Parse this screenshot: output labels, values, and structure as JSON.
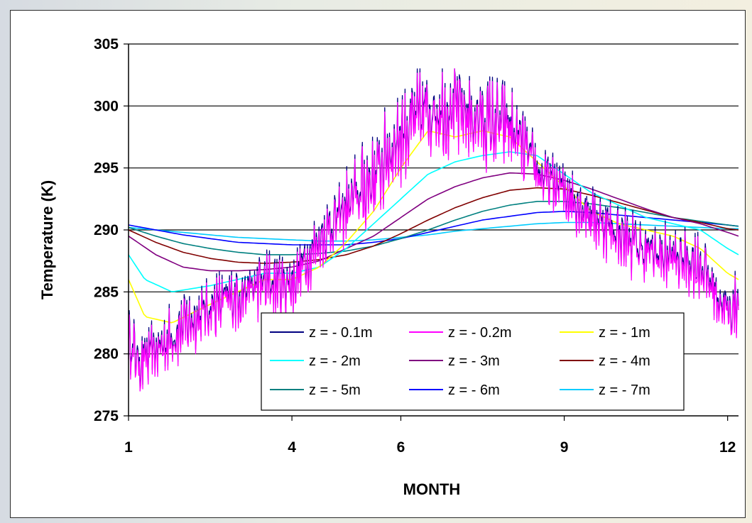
{
  "chart_data": {
    "type": "line",
    "title": "",
    "xlabel": "MONTH",
    "ylabel": "Temperature (K)",
    "xlim": [
      1,
      12.2
    ],
    "ylim": [
      275,
      305
    ],
    "x_ticks": [
      1,
      4,
      6,
      9,
      12
    ],
    "x_tick_labels": [
      "1",
      "4",
      "6",
      "9",
      "12"
    ],
    "y_ticks": [
      275,
      280,
      285,
      290,
      295,
      300,
      305
    ],
    "y_tick_labels": [
      "275",
      "280",
      "285",
      "290",
      "295",
      "300",
      "305"
    ],
    "grid": "horizontal",
    "legend_position": "bottom-center",
    "series": [
      {
        "name": "z = - 0.1m",
        "color": "#000080",
        "noise": true,
        "x": [
          1,
          1.2,
          1.5,
          2,
          2.5,
          3,
          3.5,
          4,
          4.5,
          5,
          5.5,
          6,
          6.5,
          7,
          7.5,
          8,
          8.3,
          8.6,
          9,
          9.5,
          10,
          10.5,
          11,
          11.5,
          12,
          12.2
        ],
        "y": [
          281,
          279,
          280,
          282,
          283.5,
          284.5,
          285.5,
          285.5,
          289,
          291.5,
          294,
          297.5,
          299.5,
          299.5,
          298.5,
          298,
          296,
          294,
          293,
          291,
          289.5,
          288,
          287.5,
          287,
          283,
          284
        ]
      },
      {
        "name": "z = - 0.2m",
        "color": "#ff00ff",
        "noise": true,
        "x": [
          1,
          1.2,
          1.5,
          2,
          2.5,
          3,
          3.5,
          4,
          4.5,
          5,
          5.5,
          6,
          6.5,
          7,
          7.5,
          8,
          8.3,
          8.6,
          9,
          9.5,
          10,
          10.5,
          11,
          11.5,
          12,
          12.2
        ],
        "y": [
          281,
          279,
          280,
          282,
          283.5,
          284.5,
          285.5,
          285.5,
          289,
          291.5,
          294,
          297.5,
          299.5,
          299.5,
          298.5,
          298,
          296,
          294,
          293,
          291,
          289.5,
          288,
          287.5,
          287,
          283,
          284
        ]
      },
      {
        "name": "z = - 1m",
        "color": "#ffff00",
        "x": [
          1,
          1.3,
          1.8,
          2.5,
          3,
          3.5,
          4,
          4.5,
          5,
          5.5,
          6,
          6.5,
          7,
          7.5,
          8,
          8.5,
          9,
          9.5,
          10,
          10.5,
          11,
          11.5,
          12,
          12.2
        ],
        "y": [
          286,
          283,
          282.5,
          284,
          285,
          286,
          286,
          287,
          289,
          291.5,
          295,
          298,
          297.5,
          298,
          297.5,
          295.5,
          293.5,
          291.5,
          290.5,
          290,
          289.5,
          288.5,
          286.5,
          286
        ]
      },
      {
        "name": "z = - 2m",
        "color": "#00ffff",
        "x": [
          1,
          1.3,
          1.8,
          2.5,
          3,
          3.5,
          4,
          4.5,
          5,
          5.5,
          6,
          6.5,
          7,
          7.5,
          8,
          8.5,
          9,
          9.5,
          10,
          10.5,
          11,
          11.5,
          12,
          12.2
        ],
        "y": [
          288,
          286,
          285,
          285.5,
          286,
          286.5,
          286.5,
          287,
          288.5,
          290.5,
          292.5,
          294.5,
          295.5,
          296,
          296.3,
          296,
          294.5,
          293,
          292,
          291,
          290.5,
          290,
          288.5,
          288
        ]
      },
      {
        "name": "z = - 3m",
        "color": "#800080",
        "x": [
          1,
          1.5,
          2,
          2.5,
          3,
          3.5,
          4,
          4.5,
          5,
          5.5,
          6,
          6.5,
          7,
          7.5,
          8,
          8.5,
          9,
          9.5,
          10,
          10.5,
          11,
          11.5,
          12,
          12.2
        ],
        "y": [
          289.5,
          288,
          287,
          286.7,
          286.7,
          286.8,
          287,
          287.5,
          288.5,
          289.5,
          291,
          292.5,
          293.5,
          294.2,
          294.6,
          294.5,
          294,
          293.3,
          292.5,
          291.7,
          291,
          290.5,
          289.8,
          289.5
        ]
      },
      {
        "name": "z = - 4m",
        "color": "#800000",
        "x": [
          1,
          1.5,
          2,
          2.5,
          3,
          3.5,
          4,
          4.5,
          5,
          5.5,
          6,
          6.5,
          7,
          7.5,
          8,
          8.5,
          9,
          9.5,
          10,
          10.5,
          11,
          11.5,
          12,
          12.2
        ],
        "y": [
          290,
          289,
          288.2,
          287.7,
          287.4,
          287.3,
          287.4,
          287.6,
          288,
          288.7,
          289.7,
          290.8,
          291.8,
          292.6,
          293.2,
          293.4,
          293.3,
          292.8,
          292.2,
          291.6,
          291,
          290.6,
          290.1,
          290
        ]
      },
      {
        "name": "z = - 5m",
        "color": "#008080",
        "x": [
          1,
          1.5,
          2,
          2.5,
          3,
          3.5,
          4,
          4.5,
          5,
          5.5,
          6,
          6.5,
          7,
          7.5,
          8,
          8.5,
          9,
          9.5,
          10,
          10.5,
          11,
          11.5,
          12,
          12.2
        ],
        "y": [
          290.2,
          289.5,
          288.9,
          288.5,
          288.2,
          288,
          288,
          288.1,
          288.3,
          288.7,
          289.3,
          290,
          290.8,
          291.5,
          292,
          292.3,
          292.3,
          292.1,
          291.8,
          291.4,
          291,
          290.7,
          290.4,
          290.3
        ]
      },
      {
        "name": "z = - 6m",
        "color": "#0000ff",
        "x": [
          1,
          1.5,
          2,
          2.5,
          3,
          3.5,
          4,
          4.5,
          5,
          5.5,
          6,
          6.5,
          7,
          7.5,
          8,
          8.5,
          9,
          9.5,
          10,
          10.5,
          11,
          11.5,
          12,
          12.2
        ],
        "y": [
          290.4,
          290,
          289.6,
          289.3,
          289,
          288.9,
          288.8,
          288.8,
          288.8,
          289,
          289.3,
          289.8,
          290.3,
          290.8,
          291.1,
          291.4,
          291.5,
          291.4,
          291.2,
          291,
          290.8,
          290.6,
          290.4,
          290.3
        ]
      },
      {
        "name": "z = - 7m",
        "color": "#00ccff",
        "x": [
          1,
          1.5,
          2,
          2.5,
          3,
          3.5,
          4,
          4.5,
          5,
          5.5,
          6,
          6.5,
          7,
          7.5,
          8,
          8.5,
          9,
          9.5,
          10,
          10.5,
          11,
          11.5,
          12,
          12.2
        ],
        "y": [
          290.2,
          290,
          289.8,
          289.6,
          289.4,
          289.3,
          289.2,
          289.1,
          289.1,
          289.2,
          289.4,
          289.6,
          289.9,
          290.1,
          290.3,
          290.5,
          290.6,
          290.6,
          290.5,
          290.4,
          290.3,
          290.2,
          290.1,
          290.1
        ]
      }
    ]
  }
}
